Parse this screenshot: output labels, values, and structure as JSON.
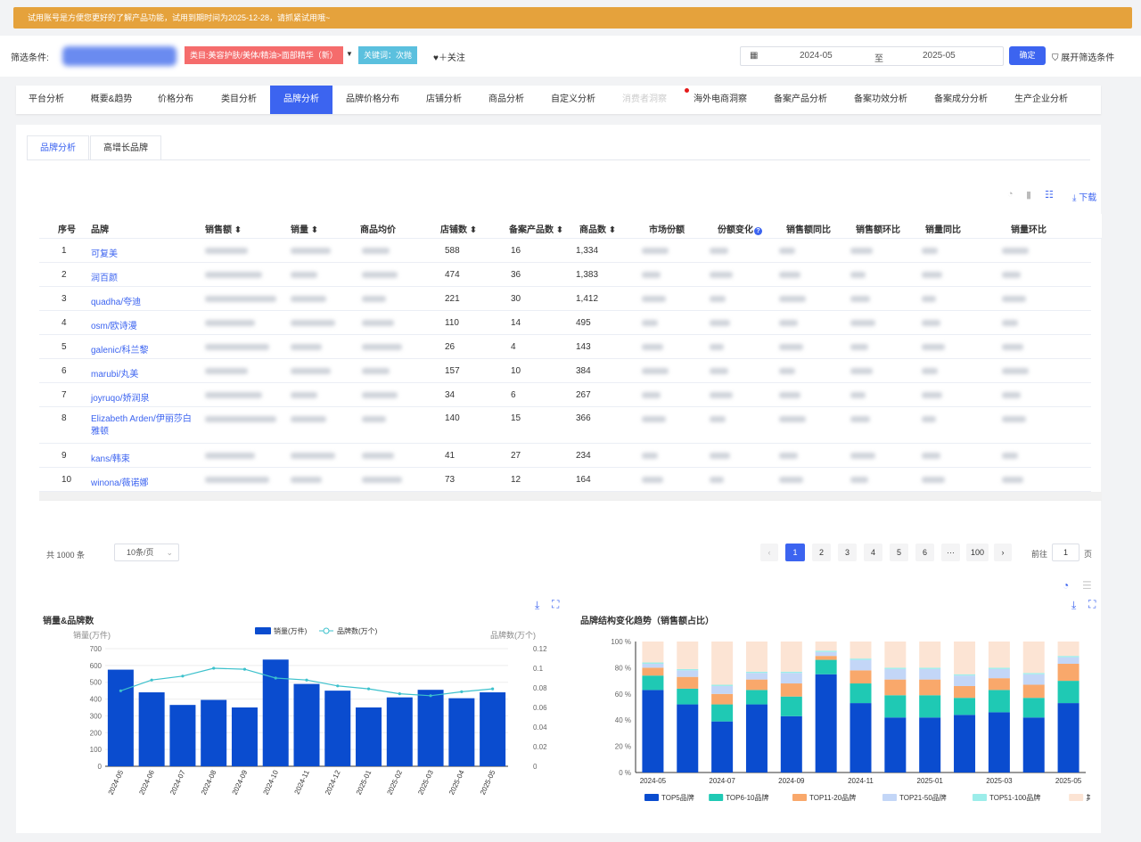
{
  "banner": {
    "text": "试用账号是方便您更好的了解产品功能，试用到期时间为2025-12-28，请抓紧试用哦~"
  },
  "filter": {
    "label": "筛选条件:",
    "category_tag": "类目:美容护肤/美体/精油>面部精华（新）",
    "keyword_tag": "关键词：次抛",
    "follow": "♥＋关注",
    "date_start": "2024-05",
    "date_sep": "至",
    "date_end": "2025-05",
    "confirm": "确定",
    "expand": "展开筛选条件"
  },
  "nav": {
    "items": [
      "平台分析",
      "概要&趋势",
      "价格分布",
      "类目分析",
      "品牌分析",
      "品牌价格分布",
      "店铺分析",
      "商品分析",
      "自定义分析",
      "消费者洞察",
      "海外电商洞察",
      "备案产品分析",
      "备案功效分析",
      "备案成分分析",
      "生产企业分析"
    ],
    "active_index": 4,
    "disabled_index": 9
  },
  "subtabs": {
    "items": [
      "品牌分析",
      "高增长品牌"
    ],
    "active_index": 0
  },
  "toolbar": {
    "download": "⤓ 下载"
  },
  "table": {
    "headers": [
      "序号",
      "品牌",
      "销售额 ⬍",
      "销量 ⬍",
      "商品均价",
      "店铺数 ⬍",
      "备案产品数 ⬍",
      "商品数 ⬍",
      "市场份额",
      "份额变化",
      "销售额同比",
      "销售额环比",
      "销量同比",
      "销量环比"
    ],
    "rows": [
      {
        "no": "1",
        "brand": "可复美",
        "shops": "588",
        "filed": "16",
        "items": "1,334"
      },
      {
        "no": "2",
        "brand": "润百颜",
        "shops": "474",
        "filed": "36",
        "items": "1,383"
      },
      {
        "no": "3",
        "brand": "quadha/夸迪",
        "shops": "221",
        "filed": "30",
        "items": "1,412"
      },
      {
        "no": "4",
        "brand": "osm/欧诗漫",
        "shops": "110",
        "filed": "14",
        "items": "495"
      },
      {
        "no": "5",
        "brand": "galenic/科兰黎",
        "shops": "26",
        "filed": "4",
        "items": "143"
      },
      {
        "no": "6",
        "brand": "marubi/丸美",
        "shops": "157",
        "filed": "10",
        "items": "384"
      },
      {
        "no": "7",
        "brand": "joyruqo/娇润泉",
        "shops": "34",
        "filed": "6",
        "items": "267"
      },
      {
        "no": "8",
        "brand": "Elizabeth Arden/伊丽莎白雅顿",
        "shops": "140",
        "filed": "15",
        "items": "366"
      },
      {
        "no": "9",
        "brand": "kans/韩束",
        "shops": "41",
        "filed": "27",
        "items": "234"
      },
      {
        "no": "10",
        "brand": "winona/薇诺娜",
        "shops": "73",
        "filed": "12",
        "items": "164"
      }
    ]
  },
  "pagination": {
    "total": "共 1000 条",
    "page_size": "10条/页",
    "pages": [
      "1",
      "2",
      "3",
      "4",
      "5",
      "6",
      "···",
      "100"
    ],
    "current": "1",
    "goto_label": "前往",
    "goto_value": "1",
    "goto_unit": "页"
  },
  "chart_data": [
    {
      "type": "bar",
      "title": "销量&品牌数",
      "categories": [
        "2024-05",
        "2024-06",
        "2024-07",
        "2024-08",
        "2024-09",
        "2024-10",
        "2024-11",
        "2024-12",
        "2025-01",
        "2025-02",
        "2025-03",
        "2025-04",
        "2025-05"
      ],
      "series": [
        {
          "name": "销量(万件)",
          "type": "bar",
          "axis": "left",
          "values": [
            575,
            440,
            365,
            395,
            350,
            635,
            490,
            450,
            350,
            410,
            455,
            405,
            440
          ]
        },
        {
          "name": "品牌数(万个)",
          "type": "line",
          "axis": "right",
          "values": [
            0.077,
            0.088,
            0.092,
            0.1,
            0.099,
            0.09,
            0.088,
            0.082,
            0.079,
            0.074,
            0.072,
            0.076,
            0.079
          ]
        }
      ],
      "ylabel": "销量(万件)",
      "y2label": "品牌数(万个)",
      "ylim": [
        0,
        700
      ],
      "yticks": [
        "700",
        "600",
        "500",
        "400",
        "300",
        "200",
        "100",
        "0"
      ],
      "y2lim": [
        0,
        0.12
      ],
      "y2ticks": [
        "0.12",
        "0.1",
        "0.08",
        "0.06",
        "0.04",
        "0.02",
        "0"
      ],
      "colors": {
        "bar": "#0a4ccf",
        "line": "#3cc1cc"
      }
    },
    {
      "type": "bar",
      "stacked": true,
      "title": "品牌结构变化趋势（销售额占比）",
      "categories": [
        "2024-05",
        "2024-06",
        "2024-07",
        "2024-08",
        "2024-09",
        "2024-10",
        "2024-11",
        "2024-12",
        "2025-01",
        "2025-02",
        "2025-03",
        "2025-04",
        "2025-05"
      ],
      "xticks": [
        "2024-05",
        "2024-07",
        "2024-09",
        "2024-11",
        "2025-01",
        "2025-03",
        "2025-05"
      ],
      "yticks": [
        "100 %",
        "80 %",
        "60 %",
        "40 %",
        "20 %",
        "0 %"
      ],
      "ylim": [
        0,
        100
      ],
      "series": [
        {
          "name": "TOP5品牌",
          "color": "#0a4ccf",
          "values": [
            63,
            52,
            39,
            52,
            43,
            75,
            53,
            42,
            42,
            44,
            46,
            42,
            53
          ]
        },
        {
          "name": "TOP6-10品牌",
          "color": "#1fc9b4",
          "values": [
            11,
            12,
            13,
            11,
            15,
            11,
            15,
            17,
            17,
            13,
            17,
            15,
            17
          ]
        },
        {
          "name": "TOP11-20品牌",
          "color": "#f9a86b",
          "values": [
            6,
            9,
            8,
            8,
            10,
            3,
            10,
            12,
            12,
            9,
            9,
            10,
            13
          ]
        },
        {
          "name": "TOP21-50品牌",
          "color": "#c3d6f7",
          "values": [
            3,
            5,
            6,
            5,
            8,
            3,
            8,
            8,
            8,
            8,
            7,
            8,
            5
          ]
        },
        {
          "name": "TOP51-100品牌",
          "color": "#9cedea",
          "values": [
            1,
            1,
            1,
            1,
            1,
            1,
            1,
            1,
            1,
            1,
            1,
            1,
            1
          ]
        },
        {
          "name": "其他品牌",
          "color": "#fce4d4",
          "values": [
            16,
            21,
            33,
            23,
            23,
            7,
            13,
            20,
            20,
            25,
            20,
            24,
            11
          ]
        }
      ]
    }
  ]
}
